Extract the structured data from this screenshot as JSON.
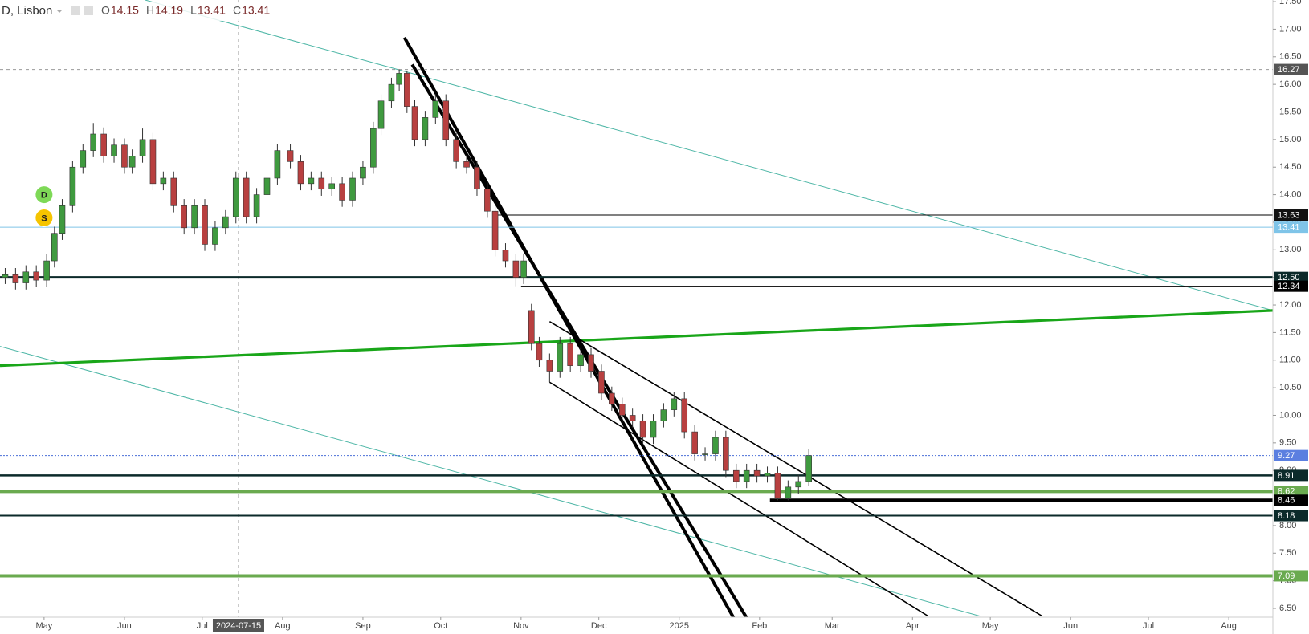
{
  "chart_data": {
    "type": "candlestick",
    "header": {
      "symbol": "D, Lisbon",
      "ohlc": [
        {
          "key": "O",
          "value": 14.15
        },
        {
          "key": "H",
          "value": 14.19
        },
        {
          "key": "L",
          "value": 13.41
        },
        {
          "key": "C",
          "value": 13.41
        }
      ]
    },
    "xlim": [
      "2024-04-14",
      "2025-08-18"
    ],
    "ylim": [
      6.34,
      17.53
    ],
    "xticks": [
      {
        "value": "2024-05-01",
        "label": "May"
      },
      {
        "value": "2024-06-01",
        "label": "Jun"
      },
      {
        "value": "2024-07-01",
        "label": "Jul"
      },
      {
        "value": "2024-08-01",
        "label": "Aug"
      },
      {
        "value": "2024-09-01",
        "label": "Sep"
      },
      {
        "value": "2024-10-01",
        "label": "Oct"
      },
      {
        "value": "2024-11-01",
        "label": "Nov"
      },
      {
        "value": "2024-12-01",
        "label": "Dec"
      },
      {
        "value": "2025-01-01",
        "label": "2025"
      },
      {
        "value": "2025-02-01",
        "label": "Feb"
      },
      {
        "value": "2025-03-01",
        "label": "Mar"
      },
      {
        "value": "2025-04-01",
        "label": "Apr"
      },
      {
        "value": "2025-05-01",
        "label": "May"
      },
      {
        "value": "2025-06-01",
        "label": "Jun"
      },
      {
        "value": "2025-07-01",
        "label": "Jul"
      },
      {
        "value": "2025-08-01",
        "label": "Aug"
      }
    ],
    "yticks": [
      {
        "value": 6.5,
        "label": "6.50"
      },
      {
        "value": 7,
        "label": "7.00"
      },
      {
        "value": 7.5,
        "label": "7.50"
      },
      {
        "value": 8,
        "label": "8.00"
      },
      {
        "value": 8.5,
        "label": "8.50"
      },
      {
        "value": 9,
        "label": "9.00"
      },
      {
        "value": 9.5,
        "label": "9.50"
      },
      {
        "value": 10,
        "label": "10.00"
      },
      {
        "value": 10.5,
        "label": "10.50"
      },
      {
        "value": 11,
        "label": "11.00"
      },
      {
        "value": 11.5,
        "label": "11.50"
      },
      {
        "value": 12,
        "label": "12.00"
      },
      {
        "value": 12.5,
        "label": "12.50"
      },
      {
        "value": 13,
        "label": "13.00"
      },
      {
        "value": 13.5,
        "label": "13.50"
      },
      {
        "value": 14,
        "label": "14.00"
      },
      {
        "value": 14.5,
        "label": "14.50"
      },
      {
        "value": 15,
        "label": "15.00"
      },
      {
        "value": 15.5,
        "label": "15.50"
      },
      {
        "value": 16,
        "label": "16.00"
      },
      {
        "value": 16.5,
        "label": "16.50"
      },
      {
        "value": 17,
        "label": "17.00"
      },
      {
        "value": 17.5,
        "label": "17.50"
      }
    ],
    "up_color": "#3f9a3f",
    "down_color": "#b84040",
    "x": [
      "2024-04-16",
      "2024-04-20",
      "2024-04-24",
      "2024-04-28",
      "2024-05-02",
      "2024-05-05",
      "2024-05-08",
      "2024-05-12",
      "2024-05-16",
      "2024-05-20",
      "2024-05-24",
      "2024-05-28",
      "2024-06-01",
      "2024-06-04",
      "2024-06-08",
      "2024-06-12",
      "2024-06-16",
      "2024-06-20",
      "2024-06-24",
      "2024-06-28",
      "2024-07-02",
      "2024-07-06",
      "2024-07-10",
      "2024-07-14",
      "2024-07-18",
      "2024-07-22",
      "2024-07-26",
      "2024-07-30",
      "2024-08-04",
      "2024-08-08",
      "2024-08-12",
      "2024-08-16",
      "2024-08-20",
      "2024-08-24",
      "2024-08-28",
      "2024-09-01",
      "2024-09-05",
      "2024-09-08",
      "2024-09-12",
      "2024-09-15",
      "2024-09-18",
      "2024-09-21",
      "2024-09-25",
      "2024-09-29",
      "2024-10-03",
      "2024-10-07",
      "2024-10-11",
      "2024-10-15",
      "2024-10-19",
      "2024-10-22",
      "2024-10-26",
      "2024-10-30",
      "2024-11-02",
      "2024-11-05",
      "2024-11-08",
      "2024-11-12",
      "2024-11-16",
      "2024-11-20",
      "2024-11-24",
      "2024-11-28",
      "2024-12-02",
      "2024-12-06",
      "2024-12-10",
      "2024-12-14",
      "2024-12-18",
      "2024-12-22",
      "2024-12-26",
      "2024-12-30",
      "2025-01-03",
      "2025-01-07",
      "2025-01-11",
      "2025-01-15",
      "2025-01-19",
      "2025-01-23",
      "2025-01-27",
      "2025-01-31",
      "2025-02-04",
      "2025-02-08",
      "2025-02-12",
      "2025-02-16",
      "2025-02-20"
    ],
    "open": [
      12.5,
      12.55,
      12.4,
      12.6,
      12.45,
      12.8,
      13.3,
      13.8,
      14.5,
      14.8,
      15.1,
      14.7,
      14.9,
      14.5,
      14.7,
      15.0,
      14.2,
      14.3,
      13.8,
      13.4,
      13.8,
      13.1,
      13.4,
      13.6,
      14.3,
      13.6,
      14.0,
      14.3,
      14.8,
      14.6,
      14.2,
      14.3,
      14.1,
      14.2,
      13.9,
      14.3,
      14.5,
      15.2,
      15.7,
      16.0,
      16.2,
      15.6,
      15.0,
      15.4,
      15.7,
      15.0,
      14.6,
      14.5,
      14.1,
      13.7,
      13.0,
      12.8,
      12.5,
      11.9,
      11.3,
      11.0,
      10.8,
      11.3,
      10.9,
      11.1,
      10.8,
      10.4,
      10.2,
      10.0,
      9.9,
      9.6,
      9.9,
      10.1,
      10.3,
      9.7,
      9.3,
      9.3,
      9.6,
      9.0,
      8.8,
      9.0,
      8.9,
      8.95,
      8.5,
      8.7,
      8.8
    ],
    "high": [
      12.67,
      12.67,
      12.72,
      12.72,
      12.92,
      13.42,
      13.92,
      14.62,
      14.92,
      15.3,
      15.22,
      15.02,
      15.02,
      14.82,
      15.2,
      15.12,
      14.42,
      14.42,
      13.92,
      13.92,
      13.92,
      13.52,
      13.72,
      14.42,
      14.42,
      14.12,
      14.42,
      14.92,
      14.92,
      14.72,
      14.42,
      14.42,
      14.32,
      14.32,
      14.42,
      14.62,
      15.32,
      15.82,
      16.12,
      16.27,
      16.25,
      15.72,
      15.52,
      15.82,
      15.82,
      15.12,
      14.72,
      14.62,
      14.22,
      13.82,
      13.12,
      12.92,
      12.92,
      12.02,
      11.42,
      11.12,
      11.42,
      11.42,
      11.22,
      11.22,
      10.92,
      10.52,
      10.32,
      10.12,
      10.02,
      10.02,
      10.22,
      10.42,
      10.42,
      9.82,
      9.42,
      9.72,
      9.72,
      9.12,
      9.12,
      9.12,
      9.07,
      9.07,
      8.82,
      8.92,
      9.39
    ],
    "low": [
      12.38,
      12.28,
      12.28,
      12.33,
      12.33,
      12.68,
      13.18,
      13.68,
      14.38,
      14.68,
      14.58,
      14.58,
      14.38,
      14.38,
      14.58,
      14.08,
      14.08,
      13.68,
      13.28,
      13.28,
      12.98,
      12.98,
      13.28,
      13.48,
      13.48,
      13.48,
      13.88,
      14.18,
      14.48,
      14.08,
      14.08,
      13.98,
      13.98,
      13.78,
      13.78,
      14.18,
      14.38,
      15.08,
      15.58,
      15.88,
      15.48,
      14.88,
      14.88,
      15.28,
      14.88,
      14.48,
      14.38,
      13.98,
      13.58,
      12.88,
      12.68,
      12.34,
      12.38,
      11.18,
      10.88,
      10.6,
      10.68,
      10.78,
      10.78,
      10.68,
      10.28,
      10.08,
      9.88,
      9.78,
      9.48,
      9.48,
      9.78,
      9.98,
      9.58,
      9.18,
      9.18,
      9.18,
      8.88,
      8.68,
      8.68,
      8.78,
      8.78,
      8.46,
      8.46,
      8.58,
      8.72
    ],
    "close": [
      12.55,
      12.4,
      12.6,
      12.45,
      12.8,
      13.3,
      13.8,
      14.5,
      14.8,
      15.1,
      14.7,
      14.9,
      14.5,
      14.7,
      15.0,
      14.2,
      14.3,
      13.8,
      13.4,
      13.8,
      13.1,
      13.4,
      13.6,
      14.3,
      13.6,
      14.0,
      14.3,
      14.8,
      14.6,
      14.2,
      14.3,
      14.1,
      14.2,
      13.9,
      14.3,
      14.5,
      15.2,
      15.7,
      16.0,
      16.2,
      15.6,
      15.0,
      15.4,
      15.7,
      15.0,
      14.6,
      14.5,
      14.1,
      13.7,
      13.0,
      12.8,
      12.5,
      12.8,
      11.3,
      11.0,
      10.8,
      11.3,
      10.9,
      11.1,
      10.8,
      10.4,
      10.2,
      10.0,
      9.9,
      9.6,
      9.9,
      10.1,
      10.3,
      9.7,
      9.3,
      9.3,
      9.6,
      9.0,
      8.8,
      9.0,
      8.9,
      8.95,
      8.5,
      8.7,
      8.8,
      9.27
    ],
    "trendlines": [
      {
        "color": "#4db6a6",
        "width": 1,
        "points": [
          [
            "2024-06-09",
            17.53
          ],
          [
            "2025-08-18",
            11.9
          ]
        ]
      },
      {
        "color": "#4db6a6",
        "width": 1,
        "points": [
          [
            "2024-04-14",
            11.25
          ],
          [
            "2025-04-27",
            6.36
          ]
        ]
      },
      {
        "color": "#19a619",
        "width": 3.2,
        "points": [
          [
            "2024-04-14",
            10.9
          ],
          [
            "2025-08-18",
            11.9
          ]
        ]
      },
      {
        "color": "#000000",
        "width": 4,
        "points": [
          [
            "2024-09-17",
            16.85
          ],
          [
            "2025-01-22",
            6.33
          ]
        ]
      },
      {
        "color": "#000000",
        "width": 4,
        "points": [
          [
            "2024-09-20",
            16.36
          ],
          [
            "2025-01-27",
            6.33
          ]
        ]
      },
      {
        "color": "#000000",
        "width": 1.6,
        "points": [
          [
            "2024-11-12",
            11.7
          ],
          [
            "2025-05-21",
            6.36
          ]
        ]
      },
      {
        "color": "#000000",
        "width": 1.6,
        "points": [
          [
            "2024-11-12",
            10.6
          ],
          [
            "2025-04-07",
            6.36
          ]
        ]
      }
    ],
    "levels": [
      {
        "value": 16.27,
        "label": "16.27",
        "color": "#999999",
        "badge": "#555555",
        "style": "dashed",
        "width": 1
      },
      {
        "value": 13.63,
        "label": "13.63",
        "color": "#000000",
        "badge": "#111111",
        "style": "solid",
        "width": 1,
        "from": "2024-10-21"
      },
      {
        "value": 13.41,
        "label": "13.41",
        "color": "#7fc4e8",
        "badge": "#7fc4e8",
        "style": "solid",
        "width": 1
      },
      {
        "value": 12.5,
        "label": "12.50",
        "color": "#0b2a2a",
        "badge": "#0b2a2a",
        "style": "solid",
        "width": 3
      },
      {
        "value": 12.34,
        "label": "12.34",
        "color": "#000000",
        "badge": "#000000",
        "style": "solid",
        "width": 1,
        "from": "2024-11-01"
      },
      {
        "value": 9.27,
        "label": "9.27",
        "color": "#4a6fd8",
        "badge": "#5b7fe0",
        "style": "dotted",
        "width": 1
      },
      {
        "value": 8.91,
        "label": "8.91",
        "color": "#0b2a2a",
        "badge": "#0b2a2a",
        "style": "solid",
        "width": 2.5
      },
      {
        "value": 8.62,
        "label": "8.62",
        "color": "#6aaa4f",
        "badge": "#6aaa4f",
        "style": "solid",
        "width": 4
      },
      {
        "value": 8.46,
        "label": "8.46",
        "color": "#000000",
        "badge": "#000000",
        "style": "solid",
        "width": 4,
        "from": "2025-02-05"
      },
      {
        "value": 8.18,
        "label": "8.18",
        "color": "#0b2a2a",
        "badge": "#0b2a2a",
        "style": "solid",
        "width": 2
      },
      {
        "value": 7.09,
        "label": "7.09",
        "color": "#6aaa4f",
        "badge": "#6aaa4f",
        "style": "solid",
        "width": 4
      }
    ],
    "crosshair": {
      "x": "2024-07-15"
    },
    "markers": [
      {
        "label": "D",
        "date": "2024-05-01",
        "value": 14.0,
        "color": "#7ed957"
      },
      {
        "label": "S",
        "date": "2024-05-01",
        "value": 13.58,
        "color": "#f5c400"
      }
    ]
  }
}
